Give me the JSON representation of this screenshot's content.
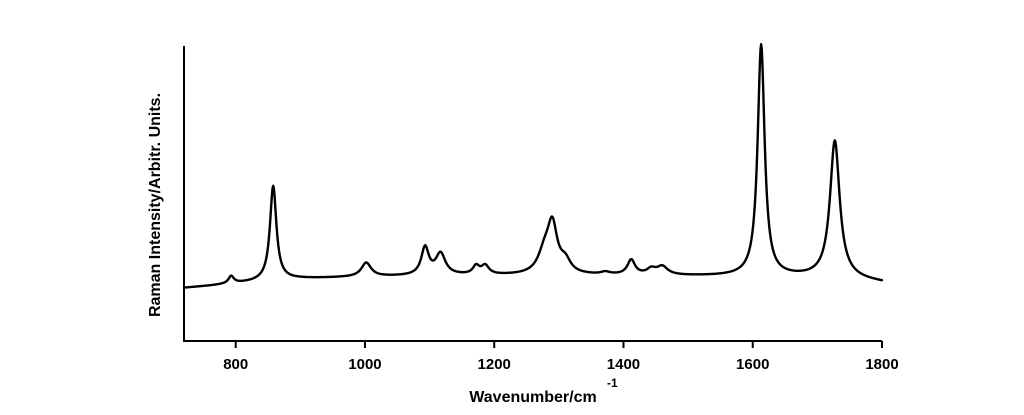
{
  "chart_data": {
    "type": "line",
    "title": "",
    "xlabel": "Wavenumber/cm",
    "xlabel_superscript": "-1",
    "ylabel": "Raman Intensity/Arbitr. Units.",
    "xlim": [
      720,
      1800
    ],
    "ylim": [
      0,
      1.0
    ],
    "x_ticks": [
      800,
      1000,
      1200,
      1400,
      1600,
      1800
    ],
    "x_tick_labels": [
      "800",
      "1000",
      "1200",
      "1400",
      "1600",
      "1800"
    ],
    "y_tick_labels": [],
    "grid": false,
    "legend": "none",
    "line_color": "#000000",
    "baseline": {
      "x": [
        720,
        760,
        800,
        850,
        880,
        900,
        950,
        1000,
        1050,
        1100,
        1150,
        1200,
        1250,
        1300,
        1350,
        1400,
        1450,
        1500,
        1550,
        1600,
        1650,
        1700,
        1750,
        1800
      ],
      "y": [
        0.18,
        0.187,
        0.195,
        0.204,
        0.209,
        0.211,
        0.214,
        0.217,
        0.219,
        0.221,
        0.222,
        0.222,
        0.222,
        0.222,
        0.222,
        0.222,
        0.222,
        0.22,
        0.219,
        0.218,
        0.217,
        0.215,
        0.21,
        0.198
      ]
    },
    "peaks": [
      {
        "x": 793,
        "height": 0.025,
        "width": 5
      },
      {
        "x": 858,
        "height": 0.32,
        "width": 6
      },
      {
        "x": 1002,
        "height": 0.047,
        "width": 9
      },
      {
        "x": 1093,
        "height": 0.093,
        "width": 7
      },
      {
        "x": 1117,
        "height": 0.072,
        "width": 9
      },
      {
        "x": 1172,
        "height": 0.028,
        "width": 6
      },
      {
        "x": 1186,
        "height": 0.03,
        "width": 7
      },
      {
        "x": 1278,
        "height": 0.07,
        "width": 12
      },
      {
        "x": 1290,
        "height": 0.155,
        "width": 9
      },
      {
        "x": 1310,
        "height": 0.04,
        "width": 10
      },
      {
        "x": 1372,
        "height": 0.008,
        "width": 8
      },
      {
        "x": 1412,
        "height": 0.05,
        "width": 7
      },
      {
        "x": 1443,
        "height": 0.018,
        "width": 8
      },
      {
        "x": 1460,
        "height": 0.028,
        "width": 10
      },
      {
        "x": 1613,
        "height": 0.785,
        "width": 6.5
      },
      {
        "x": 1727,
        "height": 0.465,
        "width": 9
      }
    ]
  }
}
